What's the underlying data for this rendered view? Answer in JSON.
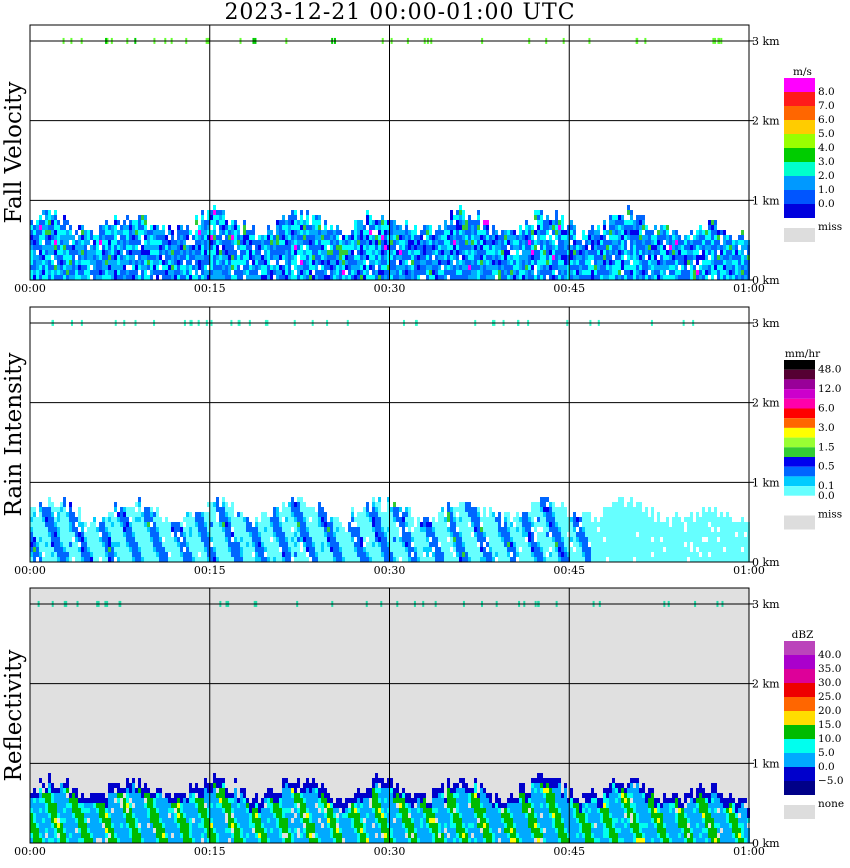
{
  "title": "2023-12-21   00:00-01:00 UTC",
  "chart_data": [
    {
      "type": "heatmap",
      "name": "fall-velocity",
      "ylabel": "Fall Velocity",
      "x_ticks": [
        "00:00",
        "00:15",
        "00:30",
        "00:45",
        "01:00"
      ],
      "y_ticks": [
        "0 km",
        "1 km",
        "2 km",
        "3 km"
      ],
      "xlim": [
        "00:00",
        "01:00"
      ],
      "ylim_km": [
        0,
        3.2
      ],
      "grid": true,
      "background": "#ffffff",
      "echo_top_km": 0.78,
      "rain_band_km": 3.0,
      "colorbar": {
        "unit": "m/s",
        "labels": [
          "8.0",
          "7.0",
          "6.0",
          "5.0",
          "4.0",
          "3.0",
          "2.0",
          "1.0",
          "0.0"
        ],
        "colors": [
          "#ff00ff",
          "#ff1a1a",
          "#ff6600",
          "#ffcc00",
          "#99ff00",
          "#00cc00",
          "#00ffcc",
          "#0099ff",
          "#0055ff",
          "#0000dd"
        ],
        "missing_label": "miss",
        "missing_color": "#dddddd"
      },
      "palette": [
        "#0000ee",
        "#0066ff",
        "#00aaff",
        "#00ffff",
        "#33cc33",
        "#ff00ff"
      ]
    },
    {
      "type": "heatmap",
      "name": "rain-intensity",
      "ylabel": "Rain Intensity",
      "x_ticks": [
        "00:00",
        "00:15",
        "00:30",
        "00:45",
        "01:00"
      ],
      "y_ticks": [
        "0 km",
        "1 km",
        "2 km",
        "3 km"
      ],
      "xlim": [
        "00:00",
        "01:00"
      ],
      "ylim_km": [
        0,
        3.2
      ],
      "grid": true,
      "background": "#ffffff",
      "echo_top_km": 0.7,
      "rain_band_km": 3.0,
      "colorbar": {
        "unit": "mm/hr",
        "labels": [
          "48.0",
          "",
          "12.0",
          "",
          "6.0",
          "",
          "3.0",
          "",
          "1.5",
          "",
          "0.5",
          "",
          "0.1",
          "0.0"
        ],
        "colors": [
          "#000000",
          "#550033",
          "#990099",
          "#cc00cc",
          "#ff00aa",
          "#ff0000",
          "#ff6600",
          "#ffff00",
          "#99ff33",
          "#33cc33",
          "#0000ee",
          "#0066ff",
          "#00ccff",
          "#66ffff",
          "#ffffff"
        ],
        "missing_label": "miss",
        "missing_color": "#dddddd"
      },
      "palette": [
        "#aaffff",
        "#66ffff",
        "#00ccff",
        "#0066ff",
        "#0000ee",
        "#33cc33"
      ]
    },
    {
      "type": "heatmap",
      "name": "reflectivity",
      "ylabel": "Reflectivity",
      "x_ticks": [
        "00:00",
        "00:15",
        "00:30",
        "00:45",
        "01:00"
      ],
      "y_ticks": [
        "0 km",
        "1 km",
        "2 km",
        "3 km"
      ],
      "xlim": [
        "00:00",
        "01:00"
      ],
      "ylim_km": [
        0,
        3.2
      ],
      "grid": true,
      "background": "#e0e0e0",
      "echo_top_km": 0.75,
      "rain_band_km": 3.0,
      "colorbar": {
        "unit": "dBZ",
        "labels": [
          "40.0",
          "35.0",
          "30.0",
          "25.0",
          "20.0",
          "15.0",
          "10.0",
          "5.0",
          "0.0",
          "−5.0"
        ],
        "colors": [
          "#bb44bb",
          "#aa00cc",
          "#dd0099",
          "#ee0000",
          "#ff6600",
          "#ffdd00",
          "#00bb00",
          "#00ffee",
          "#00aaff",
          "#0000cc",
          "#000088"
        ],
        "missing_label": "none",
        "missing_color": "#dddddd"
      },
      "palette": [
        "#0000cc",
        "#00aaff",
        "#00ffee",
        "#00bb00",
        "#ffff00",
        "#ff6600"
      ]
    }
  ]
}
